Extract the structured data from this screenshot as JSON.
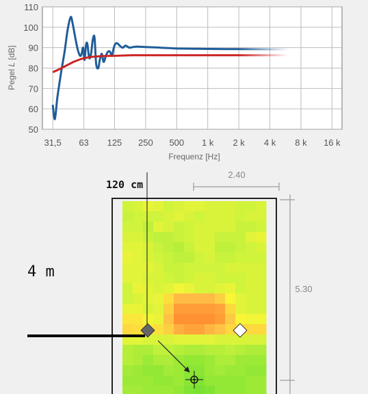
{
  "chart_data": {
    "type": "line",
    "xlabel": "Frequenz [Hz]",
    "ylabel_prefix": "Pegel ",
    "ylabel_var": "L",
    "ylabel_unit": " [dB]",
    "x_scale": "log",
    "xlim": [
      25,
      20000
    ],
    "ylim": [
      50,
      110
    ],
    "x_ticks": [
      31.5,
      63,
      125,
      250,
      500,
      1000,
      2000,
      4000,
      8000,
      16000
    ],
    "x_tick_labels": [
      "31,5",
      "63",
      "125",
      "250",
      "500",
      "1 k",
      "2 k",
      "4 k",
      "8 k",
      "16 k"
    ],
    "y_ticks": [
      50,
      60,
      70,
      80,
      90,
      100,
      110
    ],
    "grid": true,
    "series": [
      {
        "color": "#1f5c99",
        "x": [
          31.5,
          33,
          35,
          38,
          41,
          44,
          47,
          49,
          52,
          55,
          58,
          60,
          62,
          64,
          66,
          68,
          71,
          74,
          77,
          80,
          83,
          87,
          90,
          94,
          98,
          103,
          108,
          113,
          118,
          123,
          128,
          134,
          140,
          150,
          160,
          175,
          200,
          250,
          350,
          500,
          700,
          1000,
          2000,
          4000,
          6000
        ],
        "y": [
          62,
          55,
          66,
          78,
          88,
          99,
          105,
          102,
          95,
          89,
          86,
          87,
          90,
          84,
          91,
          92,
          85,
          87,
          94,
          95,
          82,
          80,
          84,
          87,
          83,
          86,
          88,
          88,
          86,
          90,
          92,
          92,
          91,
          90,
          91,
          90,
          90.5,
          90.3,
          90,
          89.6,
          89.5,
          89.4,
          89.3,
          89.2,
          89.2
        ],
        "fade_from_x": 2000
      },
      {
        "color": "#cc2222",
        "x": [
          31.5,
          35,
          40,
          45,
          50,
          56,
          63,
          71,
          80,
          90,
          100,
          125,
          160,
          200,
          250,
          500,
          1000,
          2000,
          4000,
          6000
        ],
        "y": [
          78,
          79,
          80.5,
          81.8,
          83,
          84,
          84.8,
          85.3,
          85.6,
          85.8,
          85.9,
          86,
          86.2,
          86.3,
          86.3,
          86.3,
          86.3,
          86.3,
          86.3,
          86.3
        ],
        "fade_from_x": 2000
      }
    ]
  },
  "plan": {
    "top_label": "120 cm",
    "side_label": "4 m",
    "width_dim": "2.40",
    "height_dim": "5.30",
    "heatmap": {
      "cols": 14,
      "rows": 20,
      "grid": [
        "dadbdddcdadbdcdcdbdbdbdadadb",
        "d9dadadadbdcdbdadbdbdbdadbdb",
        "dadad8dcdbd9dadbdbdbdbd9d9da",
        "dbdbd9d8d8d9dadbdbd9d9d9dcdd",
        "dcdcdbd9d8d7d9dbdbd8d8d9dadb",
        "dddcdbdad9d8d8dadbd9d9dadada",
        "dcdcdcdbd9d9dadadadadbdbdbdb",
        "dcdcdbdbdad9dadbdbdadadadbdb",
        "dadddcdbdcdedddbdbdcdddadbdb",
        "dadbdcdde2e7e7e7e7e4dfdcdbdb",
        "dddddbdce4ececececebe3dcdbdb",
        "e1e1dedde6eeeeeeeeece5dfdede",
        "e3e2e1e2e4e9ebebe8e6e3e3e3e3",
        "dcdcdbdbdbdcdcdcdcdbdbdbdbdb",
        "d7d6d6d8d8d7d6d6d7d7d8d7d6d6",
        "d7d6d4d6d6d4d3d3d4d6d6d4d4d4",
        "d5d4d3d3d5d4d2d2d4d5d4d4d3d3",
        "d4d4d4d3d3d4d2d1d3d3d3d3d4d4",
        "d5d5d4d4d4d3d1d0d1d3d3d3d4d4",
        "d7d6d5d4d4d3d3d3d4d5d5d5d4d4"
      ]
    }
  }
}
